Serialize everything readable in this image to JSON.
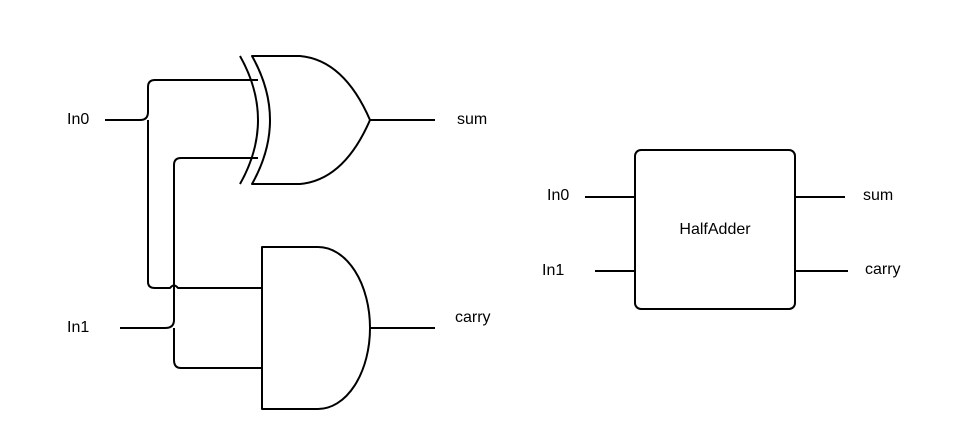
{
  "circuit": {
    "inputs": {
      "in0": "In0",
      "in1": "In1"
    },
    "outputs": {
      "sum": "sum",
      "carry": "carry"
    },
    "gates": {
      "xor": "xor-gate",
      "and": "and-gate"
    }
  },
  "block": {
    "title": "HalfAdder",
    "inputs": {
      "in0": "In0",
      "in1": "In1"
    },
    "outputs": {
      "sum": "sum",
      "carry": "carry"
    }
  },
  "colors": {
    "stroke": "#000000",
    "background": "#ffffff"
  }
}
